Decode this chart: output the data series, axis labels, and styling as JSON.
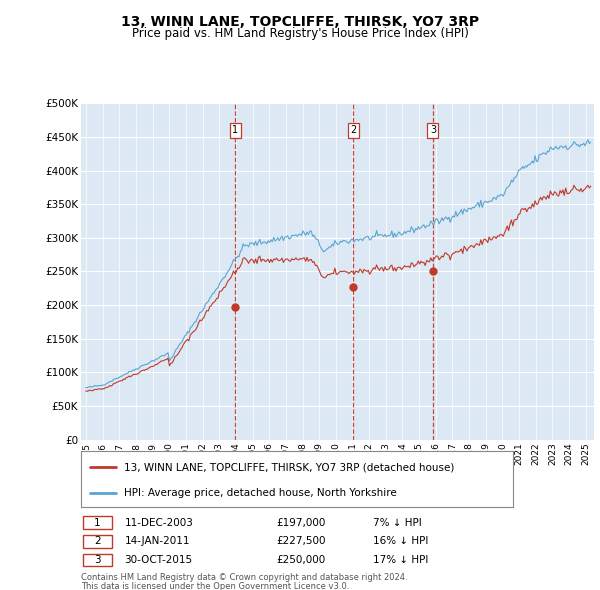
{
  "title": "13, WINN LANE, TOPCLIFFE, THIRSK, YO7 3RP",
  "subtitle": "Price paid vs. HM Land Registry's House Price Index (HPI)",
  "legend_line1": "13, WINN LANE, TOPCLIFFE, THIRSK, YO7 3RP (detached house)",
  "legend_line2": "HPI: Average price, detached house, North Yorkshire",
  "footer_line1": "Contains HM Land Registry data © Crown copyright and database right 2024.",
  "footer_line2": "This data is licensed under the Open Government Licence v3.0.",
  "transactions": [
    {
      "num": 1,
      "date": "11-DEC-2003",
      "price": "£197,000",
      "rel": "7% ↓ HPI"
    },
    {
      "num": 2,
      "date": "14-JAN-2011",
      "price": "£227,500",
      "rel": "16% ↓ HPI"
    },
    {
      "num": 3,
      "date": "30-OCT-2015",
      "price": "£250,000",
      "rel": "17% ↓ HPI"
    }
  ],
  "transaction_years": [
    2003.95,
    2011.04,
    2015.83
  ],
  "transaction_values": [
    197000,
    227500,
    250000
  ],
  "hpi_color": "#5ba3d0",
  "price_color": "#c0392b",
  "vline_color": "#c0392b",
  "bg_color": "#dce9f5",
  "ylim": [
    0,
    500000
  ],
  "yticks": [
    0,
    50000,
    100000,
    150000,
    200000,
    250000,
    300000,
    350000,
    400000,
    450000,
    500000
  ],
  "xlim_start": 1994.7,
  "xlim_end": 2025.5,
  "years_start": 1995,
  "years_end": 2025
}
